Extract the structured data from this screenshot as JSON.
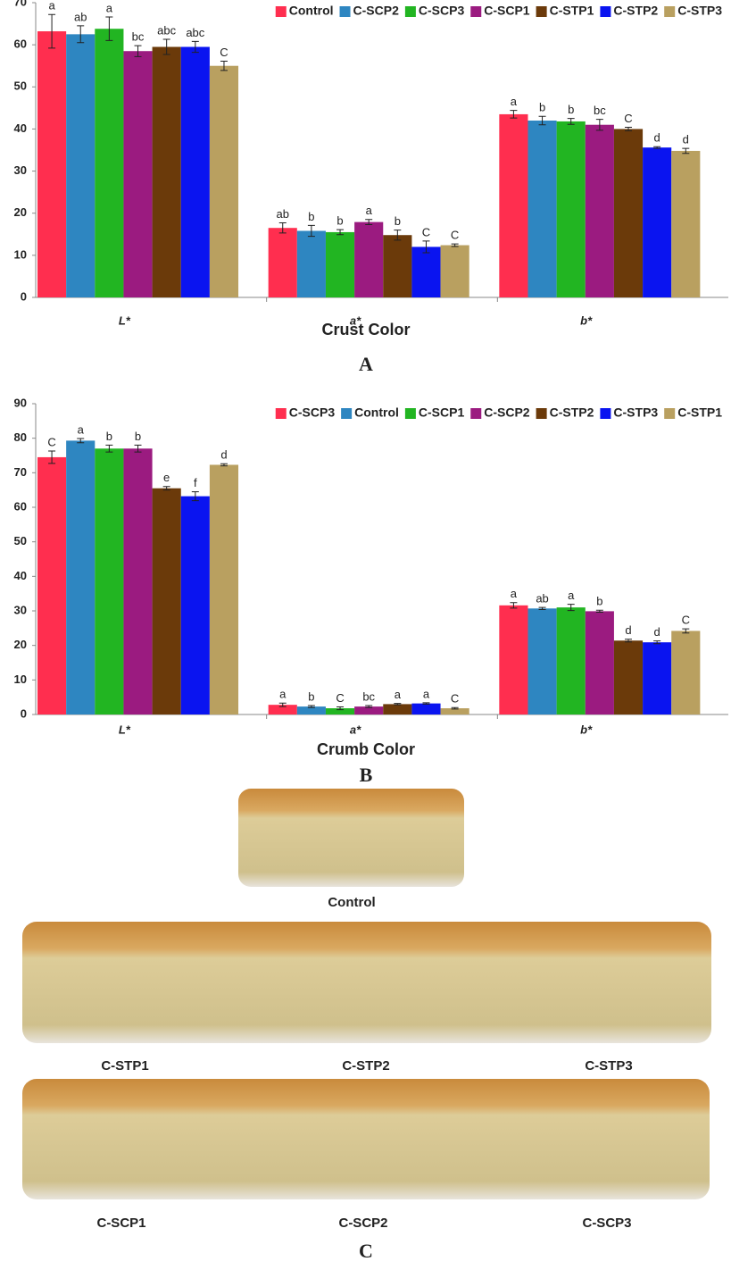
{
  "chart_data": [
    {
      "type": "bar",
      "panel_label": "A",
      "x_title": "Crust Color",
      "categories": [
        "L*",
        "a*",
        "b*"
      ],
      "ylim": [
        0,
        70
      ],
      "yticks": [
        0,
        10,
        20,
        30,
        40,
        50,
        60,
        70
      ],
      "legend": "top-right",
      "series": [
        {
          "name": "Control",
          "color": "#ff2e4f",
          "values": [
            63.2,
            16.5,
            43.5
          ],
          "errors": [
            4,
            1.2,
            0.9
          ],
          "letters": [
            "a",
            "ab",
            "a"
          ]
        },
        {
          "name": "C-SCP2",
          "color": "#2e86c1",
          "values": [
            62.5,
            15.8,
            42.0
          ],
          "errors": [
            2,
            1.3,
            1.0
          ],
          "letters": [
            "ab",
            "b",
            "b"
          ]
        },
        {
          "name": "C-SCP3",
          "color": "#22b522",
          "values": [
            63.8,
            15.5,
            41.8
          ],
          "errors": [
            2.8,
            0.6,
            0.7
          ],
          "letters": [
            "a",
            "b",
            "b"
          ]
        },
        {
          "name": "C-SCP1",
          "color": "#9b1b80",
          "values": [
            58.5,
            17.9,
            41.0
          ],
          "errors": [
            1.3,
            0.6,
            1.3
          ],
          "letters": [
            "bc",
            "a",
            "bc"
          ]
        },
        {
          "name": "C-STP1",
          "color": "#6b3a0a",
          "values": [
            59.5,
            14.8,
            40.0
          ],
          "errors": [
            1.8,
            1.2,
            0.4
          ],
          "letters": [
            "abc",
            "b",
            "C"
          ]
        },
        {
          "name": "C-STP2",
          "color": "#0a14f0",
          "values": [
            59.5,
            12.0,
            35.6
          ],
          "errors": [
            1.3,
            1.4,
            0.2
          ],
          "letters": [
            "abc",
            "C",
            "d"
          ]
        },
        {
          "name": "C-STP3",
          "color": "#b9a060",
          "values": [
            55.0,
            12.4,
            34.8
          ],
          "errors": [
            1.1,
            0.3,
            0.6
          ],
          "letters": [
            "C",
            "C",
            "d"
          ]
        }
      ]
    },
    {
      "type": "bar",
      "panel_label": "B",
      "x_title": "Crumb Color",
      "categories": [
        "L*",
        "a*",
        "b*"
      ],
      "ylim": [
        0,
        90
      ],
      "yticks": [
        0,
        10,
        20,
        30,
        40,
        50,
        60,
        70,
        80,
        90
      ],
      "legend": "top-right",
      "series": [
        {
          "name": "C-SCP3",
          "color": "#ff2e4f",
          "values": [
            74.5,
            2.8,
            31.6
          ],
          "errors": [
            1.8,
            0.5,
            0.8
          ],
          "letters": [
            "C",
            "a",
            "a"
          ]
        },
        {
          "name": "Control",
          "color": "#2e86c1",
          "values": [
            79.3,
            2.3,
            30.7
          ],
          "errors": [
            0.6,
            0.3,
            0.3
          ],
          "letters": [
            "a",
            "b",
            "ab"
          ]
        },
        {
          "name": "C-SCP1",
          "color": "#22b522",
          "values": [
            77.0,
            1.8,
            31.0
          ],
          "errors": [
            1.0,
            0.4,
            0.9
          ],
          "letters": [
            "b",
            "C",
            "a"
          ]
        },
        {
          "name": "C-SCP2",
          "color": "#9b1b80",
          "values": [
            77.0,
            2.3,
            29.9
          ],
          "errors": [
            1.0,
            0.3,
            0.3
          ],
          "letters": [
            "b",
            "bc",
            "b"
          ]
        },
        {
          "name": "C-STP2",
          "color": "#6b3a0a",
          "values": [
            65.5,
            3.0,
            21.4
          ],
          "errors": [
            0.5,
            0.2,
            0.4
          ],
          "letters": [
            "e",
            "a",
            "d"
          ]
        },
        {
          "name": "C-STP3",
          "color": "#0a14f0",
          "values": [
            63.2,
            3.2,
            20.9
          ],
          "errors": [
            1.3,
            0.2,
            0.4
          ],
          "letters": [
            "f",
            "a",
            "d"
          ]
        },
        {
          "name": "C-STP1",
          "color": "#b9a060",
          "values": [
            72.3,
            1.8,
            24.2
          ],
          "errors": [
            0.3,
            0.2,
            0.6
          ],
          "letters": [
            "d",
            "C",
            "C"
          ]
        }
      ]
    }
  ],
  "photos": {
    "panel_label": "C",
    "top": "Control",
    "row1": [
      "C-STP1",
      "C-STP2",
      "C-STP3"
    ],
    "row2": [
      "C-SCP1",
      "C-SCP2",
      "C-SCP3"
    ]
  }
}
